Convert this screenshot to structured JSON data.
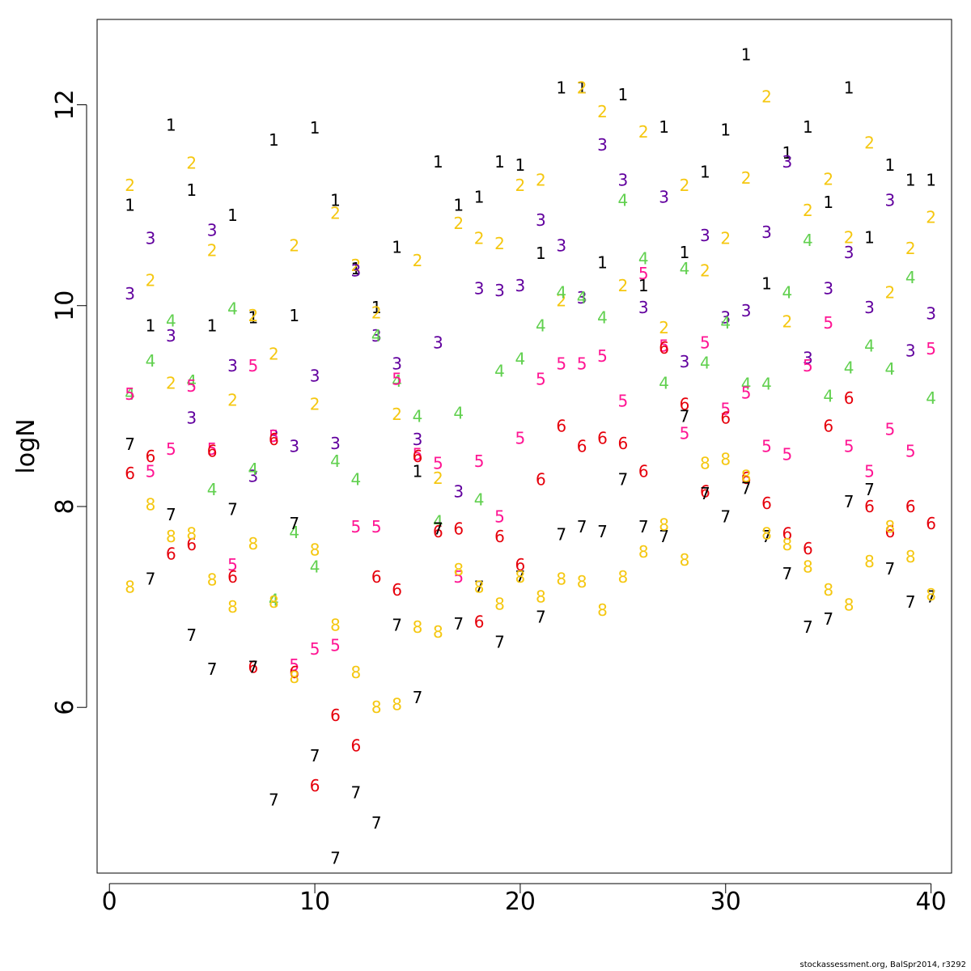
{
  "chart_data": {
    "type": "scatter",
    "ylabel": "logN",
    "xlabel": "",
    "xlim": [
      -0.6,
      41.0
    ],
    "ylim": [
      4.35,
      12.85
    ],
    "xticks": [
      0,
      10,
      20,
      30,
      40
    ],
    "yticks": [
      6,
      8,
      10,
      12
    ],
    "grid": false,
    "legend": "none",
    "marker": "series number as text glyph",
    "series": [
      {
        "name": "1",
        "color": "#000000",
        "x": [
          1,
          2,
          3,
          4,
          5,
          6,
          7,
          8,
          9,
          10,
          11,
          12,
          13,
          14,
          15,
          16,
          17,
          18,
          19,
          20,
          21,
          22,
          23,
          24,
          25,
          26,
          27,
          28,
          29,
          30,
          31,
          32,
          33,
          34,
          35,
          36,
          37,
          38,
          39,
          40
        ],
        "values": [
          11.0,
          9.8,
          11.8,
          11.15,
          9.8,
          10.9,
          9.88,
          11.65,
          9.9,
          11.77,
          11.05,
          10.37,
          9.98,
          10.58,
          8.35,
          11.43,
          11.0,
          11.08,
          11.43,
          11.4,
          10.52,
          12.17,
          12.17,
          10.43,
          12.1,
          10.2,
          11.78,
          10.53,
          11.33,
          11.75,
          12.5,
          10.22,
          11.52,
          11.78,
          11.03,
          12.17,
          10.68,
          11.4,
          11.25,
          11.25
        ]
      },
      {
        "name": "2",
        "color": "#F5C710",
        "x": [
          1,
          2,
          3,
          4,
          5,
          6,
          7,
          8,
          9,
          10,
          11,
          12,
          13,
          14,
          15,
          16,
          17,
          18,
          19,
          20,
          21,
          22,
          23,
          24,
          25,
          26,
          27,
          28,
          29,
          30,
          31,
          32,
          33,
          34,
          35,
          36,
          37,
          38,
          39,
          40
        ],
        "values": [
          11.2,
          10.25,
          9.23,
          11.42,
          10.55,
          9.06,
          9.9,
          9.52,
          10.6,
          9.02,
          10.92,
          10.4,
          9.93,
          8.92,
          10.45,
          8.28,
          10.82,
          10.67,
          10.62,
          11.2,
          11.25,
          10.05,
          12.17,
          11.93,
          10.2,
          11.73,
          9.78,
          11.2,
          10.35,
          10.67,
          11.27,
          12.08,
          9.84,
          10.95,
          11.26,
          10.68,
          11.62,
          10.13,
          10.57,
          10.88
        ]
      },
      {
        "name": "3",
        "color": "#61009E",
        "x": [
          1,
          2,
          3,
          4,
          5,
          6,
          7,
          8,
          9,
          10,
          11,
          12,
          13,
          14,
          15,
          16,
          17,
          18,
          19,
          20,
          21,
          22,
          23,
          24,
          25,
          26,
          27,
          28,
          29,
          30,
          31,
          32,
          33,
          34,
          35,
          36,
          37,
          38,
          39,
          40
        ],
        "values": [
          10.12,
          10.67,
          9.7,
          8.88,
          10.75,
          9.4,
          8.3,
          8.7,
          8.6,
          9.3,
          8.63,
          10.35,
          9.7,
          9.42,
          8.67,
          9.63,
          8.15,
          10.17,
          10.15,
          10.2,
          10.85,
          10.6,
          10.08,
          11.6,
          11.25,
          9.98,
          11.08,
          9.44,
          10.7,
          9.88,
          9.95,
          10.73,
          11.43,
          9.48,
          10.17,
          10.53,
          9.98,
          11.05,
          9.55,
          9.92
        ]
      },
      {
        "name": "4",
        "color": "#61D04F",
        "x": [
          1,
          2,
          3,
          4,
          5,
          6,
          7,
          8,
          9,
          10,
          11,
          12,
          13,
          14,
          15,
          16,
          17,
          18,
          19,
          20,
          21,
          22,
          23,
          24,
          25,
          26,
          27,
          28,
          29,
          30,
          31,
          32,
          33,
          34,
          35,
          36,
          37,
          38,
          39,
          40
        ],
        "values": [
          9.12,
          9.45,
          9.85,
          9.25,
          8.17,
          9.97,
          8.37,
          7.07,
          7.74,
          7.4,
          8.45,
          8.27,
          9.7,
          9.25,
          8.9,
          7.85,
          8.93,
          8.07,
          9.35,
          9.47,
          9.8,
          10.13,
          10.08,
          9.88,
          11.05,
          10.47,
          9.23,
          10.37,
          9.43,
          9.83,
          9.22,
          9.22,
          10.13,
          10.65,
          9.1,
          9.38,
          9.6,
          9.37,
          10.28,
          9.08
        ]
      },
      {
        "name": "5",
        "color": "#FF1493",
        "x": [
          1,
          2,
          3,
          4,
          5,
          6,
          7,
          8,
          9,
          10,
          11,
          12,
          13,
          14,
          15,
          16,
          17,
          18,
          19,
          20,
          21,
          22,
          23,
          24,
          25,
          26,
          27,
          28,
          29,
          30,
          31,
          32,
          33,
          34,
          35,
          36,
          37,
          38,
          39,
          40
        ],
        "values": [
          9.12,
          8.35,
          8.57,
          9.2,
          8.57,
          7.42,
          9.4,
          8.7,
          6.42,
          6.58,
          6.62,
          7.8,
          7.8,
          9.27,
          8.52,
          8.43,
          7.3,
          8.45,
          7.9,
          8.68,
          9.27,
          9.42,
          9.42,
          9.5,
          9.05,
          10.32,
          9.6,
          8.73,
          9.63,
          8.97,
          9.13,
          8.6,
          8.52,
          9.4,
          9.83,
          8.6,
          8.35,
          8.77,
          8.55,
          9.57
        ]
      },
      {
        "name": "6",
        "color": "#E6000B",
        "x": [
          1,
          2,
          3,
          4,
          5,
          6,
          7,
          8,
          9,
          10,
          11,
          12,
          13,
          14,
          15,
          16,
          17,
          18,
          19,
          20,
          21,
          22,
          23,
          24,
          25,
          26,
          27,
          28,
          29,
          30,
          31,
          32,
          33,
          34,
          35,
          36,
          37,
          38,
          39,
          40
        ],
        "values": [
          8.33,
          8.5,
          7.53,
          7.62,
          8.55,
          7.3,
          6.4,
          8.67,
          6.35,
          5.22,
          5.92,
          5.62,
          7.3,
          7.17,
          8.5,
          7.75,
          7.78,
          6.85,
          7.7,
          7.42,
          8.27,
          8.8,
          8.6,
          8.68,
          8.63,
          8.35,
          9.58,
          9.02,
          8.15,
          8.88,
          8.28,
          8.03,
          7.73,
          7.58,
          8.8,
          9.08,
          8.0,
          7.75,
          8.0,
          7.83
        ]
      },
      {
        "name": "7",
        "color": "#000000",
        "x": [
          1,
          2,
          3,
          4,
          5,
          6,
          7,
          8,
          9,
          10,
          11,
          12,
          13,
          14,
          15,
          16,
          17,
          18,
          19,
          20,
          21,
          22,
          23,
          24,
          25,
          26,
          27,
          28,
          29,
          30,
          31,
          32,
          33,
          34,
          35,
          36,
          37,
          38,
          39,
          40
        ],
        "values": [
          8.62,
          7.28,
          7.92,
          6.72,
          6.38,
          7.97,
          6.4,
          5.08,
          7.83,
          5.52,
          4.5,
          5.15,
          4.85,
          6.82,
          6.1,
          7.78,
          6.83,
          7.2,
          6.65,
          7.3,
          6.9,
          7.72,
          7.8,
          7.75,
          8.27,
          7.8,
          7.7,
          8.9,
          8.13,
          7.9,
          8.18,
          7.7,
          7.33,
          6.8,
          6.88,
          8.05,
          8.17,
          7.38,
          7.05,
          7.1
        ]
      },
      {
        "name": "8",
        "color": "#F5C710",
        "x": [
          1,
          2,
          3,
          4,
          5,
          6,
          7,
          8,
          9,
          10,
          11,
          12,
          13,
          14,
          15,
          16,
          17,
          18,
          19,
          20,
          21,
          22,
          23,
          24,
          25,
          26,
          27,
          28,
          29,
          30,
          31,
          32,
          33,
          34,
          35,
          36,
          37,
          38,
          39,
          40
        ],
        "values": [
          7.2,
          8.02,
          7.7,
          7.73,
          7.27,
          7.0,
          7.63,
          7.05,
          6.3,
          7.57,
          6.82,
          6.35,
          6.0,
          6.03,
          6.8,
          6.75,
          7.37,
          7.2,
          7.03,
          7.3,
          7.1,
          7.28,
          7.25,
          6.97,
          7.3,
          7.55,
          7.82,
          7.47,
          8.43,
          8.47,
          8.3,
          7.73,
          7.62,
          7.4,
          7.17,
          7.02,
          7.45,
          7.8,
          7.5,
          7.12
        ]
      }
    ]
  },
  "credit": "stockassessment.org, BalSpr2014, r3292"
}
